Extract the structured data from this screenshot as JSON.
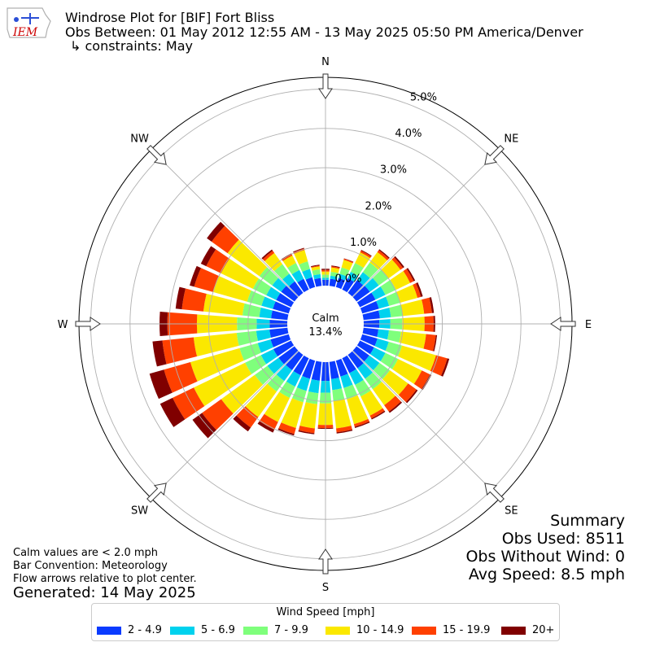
{
  "header": {
    "title": "Windrose Plot for [BIF] Fort Bliss",
    "obs_between": "Obs Between: 01 May 2012 12:55 AM - 13 May 2025 05:50 PM America/Denver",
    "constraints": "↳ constraints: May"
  },
  "logo": {
    "text": "IEM",
    "color": "#cc0000"
  },
  "notes": {
    "calm": "Calm values are < 2.0 mph",
    "convention": "Bar Convention: Meteorology",
    "arrows": "Flow arrows relative to plot center.",
    "generated": "Generated: 14 May 2025"
  },
  "summary": {
    "title": "Summary",
    "obs_used": "Obs Used: 8511",
    "obs_without_wind": "Obs Without Wind: 0",
    "avg_speed": "Avg Speed: 8.5 mph"
  },
  "chart_data": {
    "type": "windrose",
    "center_label": "Calm",
    "center_value": "13.4%",
    "radial_unit": "%",
    "radial_ticks": [
      "0.0%",
      "1.0%",
      "2.0%",
      "3.0%",
      "4.0%",
      "5.0%"
    ],
    "rmax": 5.3,
    "compass": [
      "N",
      "NE",
      "E",
      "SE",
      "S",
      "SW",
      "W",
      "NW"
    ],
    "legend_title": "Wind Speed [mph]",
    "bins": [
      {
        "name": "2 - 4.9",
        "color": "#0a3bff"
      },
      {
        "name": "5 - 6.9",
        "color": "#00d2ee"
      },
      {
        "name": "7 - 9.9",
        "color": "#7fff7c"
      },
      {
        "name": "10 - 14.9",
        "color": "#fbe800"
      },
      {
        "name": "15 - 19.9",
        "color": "#ff4000"
      },
      {
        "name": "20+",
        "color": "#800000"
      }
    ],
    "directions": [
      0,
      10,
      20,
      30,
      40,
      50,
      60,
      70,
      80,
      90,
      100,
      110,
      120,
      130,
      140,
      150,
      160,
      170,
      180,
      190,
      200,
      210,
      220,
      230,
      240,
      250,
      260,
      270,
      280,
      290,
      300,
      310,
      320,
      330,
      340,
      350
    ],
    "cumulative": [
      [
        0.15,
        0.2,
        0.28,
        0.36,
        0.4,
        0.43
      ],
      [
        0.18,
        0.26,
        0.36,
        0.47,
        0.5,
        0.52
      ],
      [
        0.24,
        0.35,
        0.52,
        0.72,
        0.75,
        0.76
      ],
      [
        0.32,
        0.5,
        0.75,
        1.05,
        1.1,
        1.12
      ],
      [
        0.4,
        0.65,
        0.95,
        1.28,
        1.34,
        1.37
      ],
      [
        0.42,
        0.7,
        1.0,
        1.38,
        1.46,
        1.5
      ],
      [
        0.44,
        0.72,
        1.02,
        1.42,
        1.52,
        1.56
      ],
      [
        0.44,
        0.71,
        1.0,
        1.46,
        1.55,
        1.6
      ],
      [
        0.42,
        0.7,
        1.0,
        1.55,
        1.75,
        1.8
      ],
      [
        0.4,
        0.68,
        0.98,
        1.55,
        1.78,
        1.82
      ],
      [
        0.38,
        0.65,
        0.96,
        1.6,
        1.85,
        1.88
      ],
      [
        0.4,
        0.7,
        1.05,
        1.95,
        2.25,
        2.3
      ],
      [
        0.4,
        0.72,
        1.08,
        1.75,
        1.98,
        2.02
      ],
      [
        0.4,
        0.72,
        1.05,
        1.62,
        1.88,
        1.92
      ],
      [
        0.42,
        0.75,
        1.08,
        1.58,
        1.78,
        1.82
      ],
      [
        0.42,
        0.75,
        1.08,
        1.62,
        1.7,
        1.73
      ],
      [
        0.42,
        0.72,
        1.02,
        1.68,
        1.75,
        1.78
      ],
      [
        0.44,
        0.72,
        1.0,
        1.7,
        1.8,
        1.83
      ],
      [
        0.48,
        0.78,
        1.05,
        1.6,
        1.68,
        1.7
      ],
      [
        0.48,
        0.8,
        1.08,
        1.7,
        1.82,
        1.85
      ],
      [
        0.48,
        0.8,
        1.1,
        1.78,
        1.94,
        1.98
      ],
      [
        0.48,
        0.8,
        1.12,
        1.8,
        2.02,
        2.1
      ],
      [
        0.48,
        0.82,
        1.15,
        1.95,
        2.28,
        2.4
      ],
      [
        0.5,
        0.85,
        1.25,
        2.3,
        2.9,
        3.2
      ],
      [
        0.5,
        0.85,
        1.3,
        2.75,
        3.35,
        3.7
      ],
      [
        0.48,
        0.82,
        1.3,
        2.6,
        3.3,
        3.68
      ],
      [
        0.46,
        0.8,
        1.3,
        2.4,
        3.2,
        3.45
      ],
      [
        0.45,
        0.78,
        1.28,
        2.3,
        3.05,
        3.25
      ],
      [
        0.42,
        0.72,
        1.15,
        2.15,
        2.7,
        2.86
      ],
      [
        0.42,
        0.72,
        1.1,
        2.0,
        2.5,
        2.62
      ],
      [
        0.42,
        0.7,
        1.08,
        1.98,
        2.4,
        2.55
      ],
      [
        0.42,
        0.7,
        1.1,
        2.1,
        2.6,
        2.75
      ],
      [
        0.36,
        0.6,
        0.9,
        1.25,
        1.32,
        1.36
      ],
      [
        0.3,
        0.55,
        0.75,
        0.96,
        1.0,
        1.02
      ],
      [
        0.26,
        0.48,
        0.68,
        0.98,
        1.02,
        1.04
      ],
      [
        0.2,
        0.3,
        0.42,
        0.5,
        0.52,
        0.54
      ]
    ]
  }
}
